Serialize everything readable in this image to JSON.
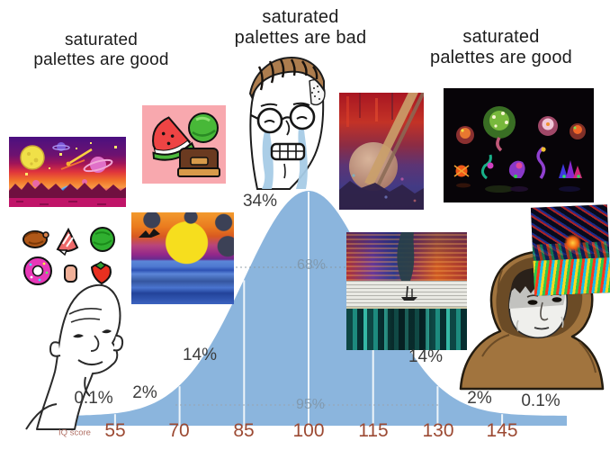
{
  "meme": {
    "captions": {
      "left": "saturated\npalettes are good",
      "center": "saturated\npalettes are bad",
      "right": "saturated\npalettes are good"
    }
  },
  "chart_data": {
    "type": "area",
    "xlabel": "IQ score",
    "x_ticks": [
      55,
      70,
      85,
      100,
      115,
      130,
      145
    ],
    "mean": 100,
    "sd": 15,
    "curve_color": "#8bb5dd",
    "gridline_color": "#ffffff",
    "tick_color": "#9c4a33",
    "labels": {
      "tail_left": "0.1%",
      "two_left": "2%",
      "fourteen_left": "14%",
      "thirtyfour": "34%",
      "sixtyeight": "68%",
      "ninetyfive": "95%",
      "fourteen_right": "14%",
      "two_right": "2%",
      "tail_right": "0.1%"
    }
  }
}
